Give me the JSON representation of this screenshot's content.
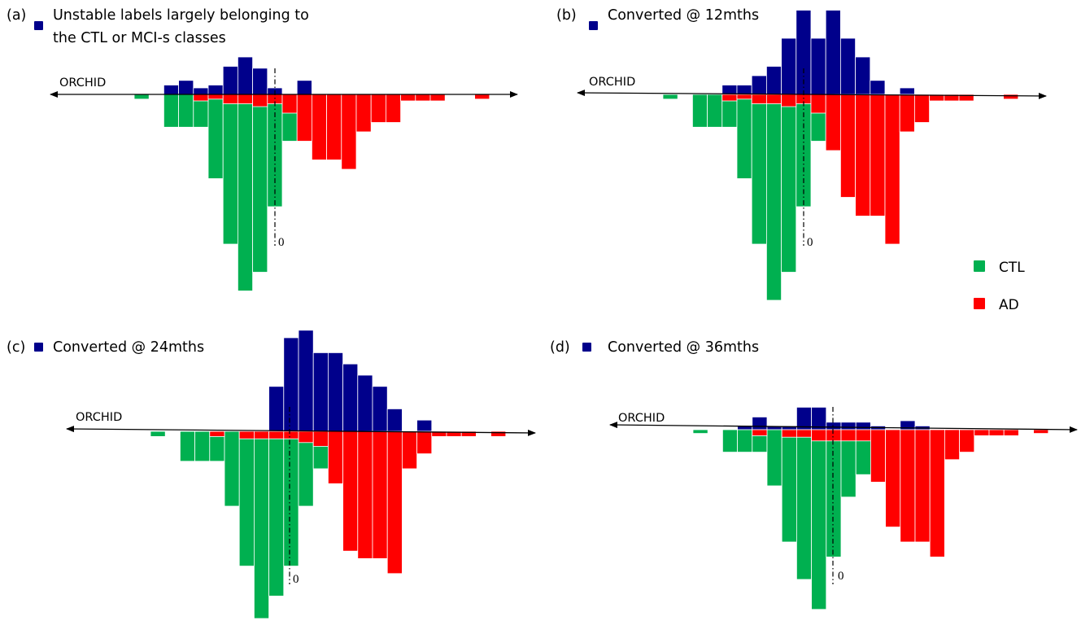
{
  "colors": {
    "mci": "#00008B",
    "ctl": "#00B050",
    "ad": "#FF0000",
    "axis": "#000000"
  },
  "legend": {
    "ctl_label": "CTL",
    "ad_label": "AD"
  },
  "chart_data": [
    {
      "type": "bar",
      "panel_label": "(a)",
      "series_legend": [
        "Unstable labels largely belonging to",
        "the CTL or MCI-s classes"
      ],
      "axis_label": "ORCHID",
      "zero_label": "0",
      "grid": false,
      "series": [
        {
          "name": "MCI (unstable labels)",
          "direction": "up",
          "values": [
            0,
            0,
            1,
            1.5,
            0.7,
            1,
            3,
            4,
            2.8,
            0.7,
            0,
            1.5,
            0,
            0,
            0,
            0,
            0,
            0,
            0,
            0,
            0,
            0,
            0,
            0
          ]
        },
        {
          "name": "CTL",
          "direction": "down",
          "values": [
            0.5,
            0,
            3.5,
            3.5,
            3.5,
            9,
            16,
            21,
            19,
            12,
            5,
            0,
            0,
            0,
            0,
            0,
            0,
            0,
            0,
            0,
            0,
            0,
            0,
            0
          ]
        },
        {
          "name": "AD",
          "direction": "down",
          "values": [
            0,
            0,
            0,
            0,
            0.7,
            0.5,
            1,
            1,
            1.3,
            1,
            2,
            5,
            7,
            7,
            8,
            4,
            3,
            3,
            0.7,
            0.7,
            0.7,
            0,
            0,
            0.5
          ]
        }
      ]
    },
    {
      "type": "bar",
      "panel_label": "(b)",
      "series_legend": [
        "Converted @ 12mths"
      ],
      "axis_label": "ORCHID",
      "zero_label": "0",
      "grid": false,
      "series": [
        {
          "name": "MCI converted @ 12mths",
          "direction": "up",
          "values": [
            0,
            0,
            0,
            0,
            1,
            1,
            2,
            3,
            6,
            9,
            6,
            9,
            6,
            4,
            1.5,
            0,
            0.7,
            0,
            0,
            0,
            0,
            0,
            0,
            0
          ]
        },
        {
          "name": "CTL",
          "direction": "down",
          "values": [
            0.5,
            0,
            3.5,
            3.5,
            3.5,
            9,
            16,
            22,
            19,
            12,
            5,
            0,
            0,
            0,
            0,
            0,
            0,
            0,
            0,
            0,
            0,
            0,
            0,
            0
          ]
        },
        {
          "name": "AD",
          "direction": "down",
          "values": [
            0,
            0,
            0,
            0,
            0.7,
            0.5,
            1,
            1,
            1.3,
            1,
            2,
            6,
            11,
            13,
            13,
            16,
            4,
            3,
            0.7,
            0.7,
            0.7,
            0,
            0,
            0.5
          ]
        }
      ]
    },
    {
      "type": "bar",
      "panel_label": "(c)",
      "series_legend": [
        "Converted @ 24mths"
      ],
      "axis_label": "ORCHID",
      "zero_label": "0",
      "grid": false,
      "series": [
        {
          "name": "MCI converted @ 24mths",
          "direction": "up",
          "values": [
            0,
            0,
            0,
            0,
            0,
            0,
            0,
            0,
            6,
            12.5,
            13.5,
            10.5,
            10.5,
            9,
            7.5,
            6,
            3,
            0,
            1.5,
            0,
            0,
            0,
            0,
            0
          ]
        },
        {
          "name": "CTL",
          "direction": "down",
          "values": [
            0.7,
            0,
            4,
            4,
            4,
            10,
            18,
            25,
            22,
            18,
            10,
            5,
            0,
            0,
            0,
            0,
            0,
            0,
            0,
            0,
            0,
            0,
            0,
            0
          ]
        },
        {
          "name": "AD",
          "direction": "down",
          "values": [
            0,
            0,
            0,
            0,
            0.7,
            0,
            1,
            1,
            1,
            1,
            1.5,
            2,
            7,
            16,
            17,
            17,
            19,
            5,
            3,
            0.7,
            0.7,
            0.7,
            0,
            0.7
          ]
        }
      ]
    },
    {
      "type": "bar",
      "panel_label": "(d)",
      "series_legend": [
        "Converted @ 36mths"
      ],
      "axis_label": "ORCHID",
      "zero_label": "0",
      "grid": false,
      "series": [
        {
          "name": "MCI converted @ 36mths",
          "direction": "up",
          "values": [
            0,
            0,
            0,
            0.5,
            1.7,
            0.5,
            0.5,
            3,
            3,
            1,
            1,
            1,
            0.5,
            0,
            1.2,
            0.5,
            0,
            0,
            0,
            0,
            0,
            0,
            0,
            0
          ]
        },
        {
          "name": "CTL",
          "direction": "down",
          "values": [
            0.5,
            0,
            3,
            3,
            3,
            7.5,
            15,
            20,
            24,
            17,
            9,
            6,
            0,
            0,
            0,
            0,
            0,
            0,
            0,
            0,
            0,
            0,
            0,
            0
          ]
        },
        {
          "name": "AD",
          "direction": "down",
          "values": [
            0,
            0,
            0,
            0,
            0.8,
            0,
            1,
            1,
            1.5,
            1.5,
            1.5,
            1.5,
            7,
            13,
            15,
            15,
            17,
            4,
            3,
            0.8,
            0.8,
            0.8,
            0,
            0.5
          ]
        }
      ]
    }
  ]
}
